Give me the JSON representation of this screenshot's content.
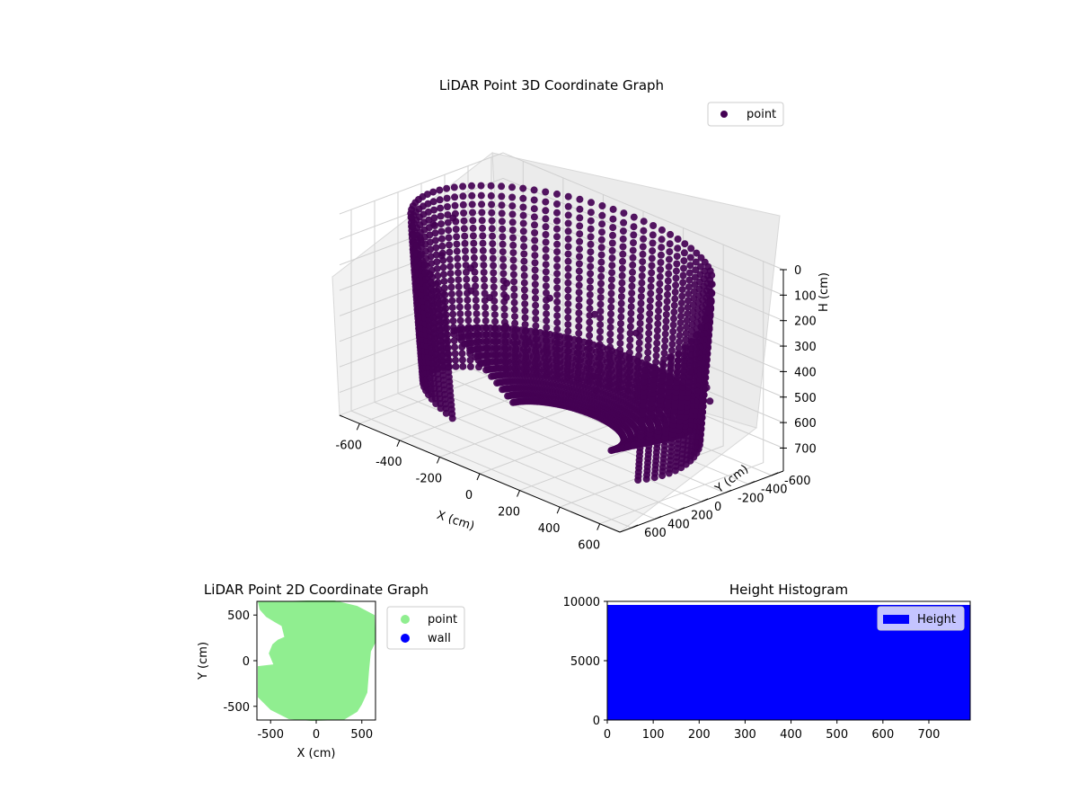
{
  "chart_data": [
    {
      "type": "scatter",
      "subtype": "3d-scatter",
      "title": "LiDAR Point 3D Coordinate Graph",
      "xlabel": "X (cm)",
      "ylabel": "Y (cm)",
      "zlabel": "H (cm)",
      "xlim": [
        -700,
        700
      ],
      "ylim": [
        -700,
        700
      ],
      "zlim": [
        790,
        0
      ],
      "z_inverted": true,
      "x_ticks": [
        -600,
        -400,
        -200,
        0,
        200,
        400,
        600
      ],
      "y_ticks": [
        -600,
        -400,
        -200,
        0,
        200,
        400,
        600
      ],
      "z_ticks": [
        0,
        100,
        200,
        300,
        400,
        500,
        600,
        700
      ],
      "grid": true,
      "legend": {
        "position": "top-right",
        "entries": [
          {
            "label": "point",
            "color": "#440154"
          }
        ]
      },
      "series": [
        {
          "name": "point",
          "color": "#440154",
          "description_shape": "bowl-shaped point cloud: points sweep around a ring of radius ~650 cm, descending from H≈0 at the rim to H≈720 at the bottom",
          "points": [
            [
              -600,
              -100,
              120
            ],
            [
              -640,
              0,
              140
            ],
            [
              -620,
              150,
              160
            ],
            [
              -560,
              300,
              180
            ],
            [
              -420,
              480,
              60
            ],
            [
              -260,
              580,
              40
            ],
            [
              -80,
              640,
              20
            ],
            [
              100,
              640,
              20
            ],
            [
              280,
              580,
              30
            ],
            [
              440,
              470,
              60
            ],
            [
              560,
              320,
              120
            ],
            [
              630,
              150,
              220
            ],
            [
              650,
              0,
              300
            ],
            [
              620,
              -180,
              400
            ],
            [
              520,
              -380,
              520
            ],
            [
              380,
              -520,
              620
            ],
            [
              200,
              -620,
              700
            ],
            [
              0,
              -650,
              720
            ],
            [
              -200,
              -620,
              700
            ],
            [
              -380,
              -520,
              640
            ],
            [
              -500,
              -380,
              560
            ],
            [
              -580,
              -220,
              420
            ],
            [
              -300,
              100,
              300
            ],
            [
              -100,
              300,
              200
            ],
            [
              -250,
              -150,
              500
            ],
            [
              -200,
              -640,
              760
            ]
          ]
        }
      ]
    },
    {
      "type": "scatter",
      "title": "LiDAR Point 2D Coordinate Graph",
      "xlabel": "X (cm)",
      "ylabel": "Y (cm)",
      "xlim": [
        -650,
        650
      ],
      "ylim": [
        -650,
        650
      ],
      "x_ticks": [
        -500,
        0,
        500
      ],
      "y_ticks": [
        -500,
        0,
        500
      ],
      "legend": {
        "position": "right-outside",
        "entries": [
          {
            "label": "point",
            "color": "#90ee90"
          },
          {
            "label": "wall",
            "color": "#0000ff"
          }
        ]
      },
      "series": [
        {
          "name": "point",
          "color": "#90ee90",
          "region_outline": [
            [
              -400,
              650
            ],
            [
              -100,
              660
            ],
            [
              200,
              660
            ],
            [
              450,
              600
            ],
            [
              640,
              500
            ],
            [
              650,
              200
            ],
            [
              600,
              100
            ],
            [
              580,
              -100
            ],
            [
              560,
              -350
            ],
            [
              500,
              -480
            ],
            [
              450,
              -560
            ],
            [
              300,
              -650
            ],
            [
              -50,
              -660
            ],
            [
              -300,
              -640
            ],
            [
              -500,
              -540
            ],
            [
              -640,
              -400
            ],
            [
              -640,
              -60
            ],
            [
              -470,
              -40
            ],
            [
              -520,
              80
            ],
            [
              -480,
              180
            ],
            [
              -420,
              230
            ],
            [
              -350,
              260
            ],
            [
              -380,
              380
            ],
            [
              -450,
              420
            ],
            [
              -550,
              480
            ],
            [
              -620,
              560
            ],
            [
              -640,
              650
            ]
          ]
        },
        {
          "name": "wall",
          "color": "#0000ff",
          "points": []
        }
      ]
    },
    {
      "type": "bar",
      "subtype": "histogram",
      "title": "Height Histogram",
      "xlabel": "",
      "ylabel": "",
      "xlim": [
        0,
        790
      ],
      "ylim": [
        0,
        10000
      ],
      "x_ticks": [
        0,
        100,
        200,
        300,
        400,
        500,
        600,
        700
      ],
      "y_ticks": [
        0,
        5000,
        10000
      ],
      "legend": {
        "position": "top-right",
        "entries": [
          {
            "label": "Height",
            "color": "#0000ff"
          }
        ]
      },
      "series": [
        {
          "name": "Height",
          "color": "#0000ff",
          "bin_range": [
            0,
            790
          ],
          "count": 9700
        }
      ]
    }
  ]
}
